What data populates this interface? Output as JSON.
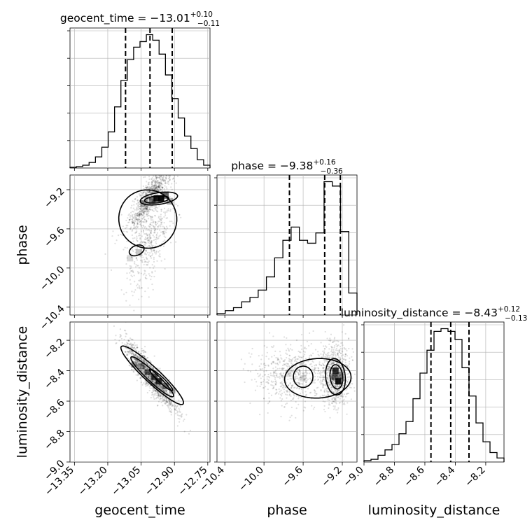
{
  "chart_data": {
    "type": "corner",
    "parameters": [
      "geocent_time",
      "phase",
      "luminosity_distance"
    ],
    "axis_labels": {
      "geocent_time": "geocent_time",
      "phase": "phase",
      "luminosity_distance": "luminosity_distance"
    },
    "titles": [
      {
        "name": "geocent_time",
        "text": "geocent_time = −13.01",
        "median": -13.01,
        "plus": "+0.10",
        "minus": "−0.11"
      },
      {
        "name": "phase",
        "text": "phase = −9.38",
        "median": -9.38,
        "plus": "+0.16",
        "minus": "−0.36"
      },
      {
        "name": "luminosity_distance",
        "text": "luminosity_distance = −8.43",
        "median": -8.43,
        "plus": "+0.12",
        "minus": "−0.13"
      }
    ],
    "ranges": {
      "geocent_time": [
        -13.37,
        -12.74
      ],
      "phase": [
        -10.48,
        -9.05
      ],
      "luminosity_distance": [
        -9.0,
        -8.08
      ]
    },
    "ticks": {
      "geocent_time": {
        "values": [
          -13.35,
          -13.2,
          -13.05,
          -12.9,
          -12.75
        ],
        "labels": [
          "−13.35",
          "−13.20",
          "−13.05",
          "−12.90",
          "−12.75"
        ]
      },
      "phase": {
        "values": [
          -10.4,
          -10.0,
          -9.6,
          -9.2
        ],
        "labels": [
          "−10.4",
          "−10.0",
          "−9.6",
          "−9.2"
        ]
      },
      "luminosity_distance": {
        "values": [
          -9.0,
          -8.8,
          -8.6,
          -8.4,
          -8.2
        ],
        "labels": [
          "−9.0",
          "−8.8",
          "−8.6",
          "−8.4",
          "−8.2"
        ]
      }
    },
    "quantile_lines": {
      "geocent_time": [
        -13.12,
        -13.01,
        -12.91
      ],
      "phase": [
        -9.74,
        -9.38,
        -9.22
      ],
      "luminosity_distance": [
        -8.56,
        -8.43,
        -8.31
      ]
    },
    "histograms": {
      "geocent_time": {
        "edges": [
          -13.37,
          -12.74
        ],
        "counts": [
          0.5,
          1,
          2,
          4,
          8,
          15,
          26,
          44,
          63,
          78,
          87,
          91,
          96,
          92,
          82,
          67,
          50,
          36,
          23,
          14,
          6,
          2
        ]
      },
      "phase": {
        "edges": [
          -10.48,
          -9.05
        ],
        "counts": [
          1,
          3,
          5,
          9,
          12,
          17,
          26,
          39,
          51,
          60,
          51,
          49,
          56,
          91,
          88,
          57,
          15
        ]
      },
      "luminosity_distance": {
        "edges": [
          -9.0,
          -8.08
        ],
        "counts": [
          1,
          2,
          5,
          9,
          13,
          21,
          30,
          47,
          66,
          83,
          97,
          99,
          97,
          91,
          70,
          49,
          29,
          15,
          7,
          3
        ]
      }
    },
    "grid": true
  }
}
